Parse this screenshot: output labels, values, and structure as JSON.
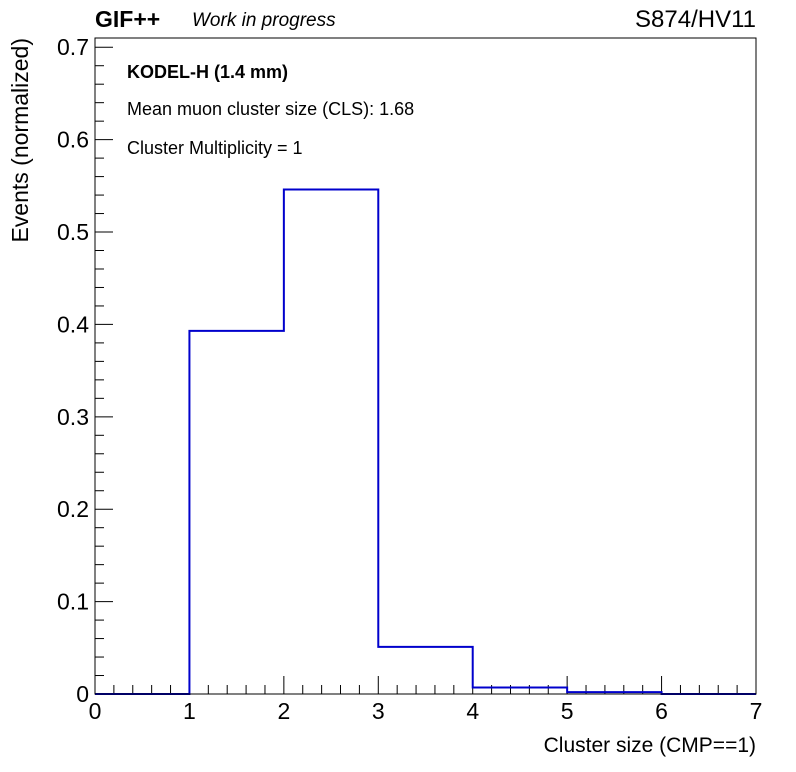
{
  "header": {
    "experiment": "GIF++",
    "status": "Work in progress",
    "run_tag": "S874/HV11"
  },
  "colors": {
    "histogram": "#0000cc",
    "axis": "#000000",
    "background": "#ffffff"
  },
  "chart_data": {
    "type": "bar",
    "style": "step-histogram",
    "xlabel": "Cluster size (CMP==1)",
    "ylabel": "Events (normalized)",
    "xlim": [
      0,
      7
    ],
    "ylim": [
      0,
      0.71
    ],
    "x_ticks": [
      "0",
      "1",
      "2",
      "3",
      "4",
      "5",
      "6",
      "7"
    ],
    "y_ticks": [
      "0",
      "0.1",
      "0.2",
      "0.3",
      "0.4",
      "0.5",
      "0.6",
      "0.7"
    ],
    "bin_edges": [
      0,
      1,
      2,
      3,
      4,
      5,
      6,
      7
    ],
    "values": [
      0.0,
      0.393,
      0.546,
      0.051,
      0.007,
      0.002,
      0.0
    ],
    "grid": false,
    "annotations": [
      {
        "text": "KODEL-H (1.4 mm)",
        "bold": true
      },
      {
        "text": "Mean muon cluster size (CLS): 1.68",
        "bold": false
      },
      {
        "text": "Cluster Multiplicity = 1",
        "bold": false
      }
    ]
  }
}
